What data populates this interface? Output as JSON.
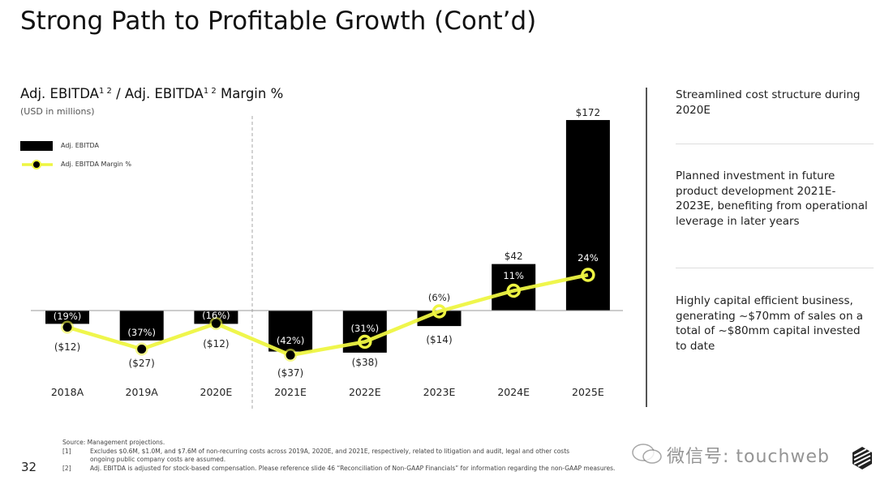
{
  "slide": {
    "title": "Strong Path to Profitable Growth (Cont’d)",
    "page_number": "32"
  },
  "chart_header": {
    "title_part1": "Adj. EBITDA",
    "sup1": "1 2",
    "title_part2": " / Adj. EBITDA",
    "sup2": "1 2",
    "title_part3": " Margin %",
    "subtitle": "(USD in millions)"
  },
  "legend": {
    "bar_label": "Adj. EBITDA",
    "line_label": "Adj. EBITDA Margin %"
  },
  "colors": {
    "bar": "#000000",
    "line": "#eef542",
    "marker_fill": "#000000",
    "divider": "#555555"
  },
  "chart_data": {
    "type": "bar",
    "title": "Adj. EBITDA / Adj. EBITDA Margin %",
    "subtitle": "(USD in millions)",
    "xlabel": "",
    "ylabel": "",
    "categories": [
      "2018A",
      "2019A",
      "2020E",
      "2021E",
      "2022E",
      "2023E",
      "2024E",
      "2025E"
    ],
    "series": [
      {
        "name": "Adj. EBITDA",
        "type": "bar",
        "values": [
          -12,
          -27,
          -12,
          -37,
          -38,
          -14,
          42,
          172
        ],
        "labels": [
          "($12)",
          "($27)",
          "($12)",
          "($37)",
          "($38)",
          "($14)",
          "$42",
          "$172"
        ]
      },
      {
        "name": "Adj. EBITDA Margin %",
        "type": "line",
        "values": [
          -19,
          -37,
          -16,
          -42,
          -31,
          -6,
          11,
          24
        ],
        "labels": [
          "(19%)",
          "(37%)",
          "(16%)",
          "(42%)",
          "(31%)",
          "(6%)",
          "11%",
          "24%"
        ]
      }
    ],
    "annotations": [
      "Dashed divider between 2020E and 2021E"
    ],
    "grid": false,
    "legend_position": "top-left"
  },
  "side_notes": [
    "Streamlined cost structure during 2020E",
    "Planned investment in future product development 2021E-2023E, benefiting from operational leverage in later years",
    "Highly capital efficient business, generating ~$70mm of sales on a total of ~$80mm capital invested to date"
  ],
  "footnotes": {
    "source": "Source: Management projections.",
    "items": [
      {
        "num": "[1]",
        "text": "Excludes $0.6M, $1.0M, and $7.6M of non-recurring costs across 2019A, 2020E, and 2021E, respectively, related to litigation and audit, legal and other costs",
        "text2": "ongoing public company costs are assumed."
      },
      {
        "num": "[2]",
        "text": "Adj. EBITDA is adjusted for stock-based compensation. Please reference slide 46 “Reconciliation of Non-GAAP Financials” for information regarding the non-GAAP measures."
      }
    ]
  },
  "watermark": "微信号: touchweb"
}
